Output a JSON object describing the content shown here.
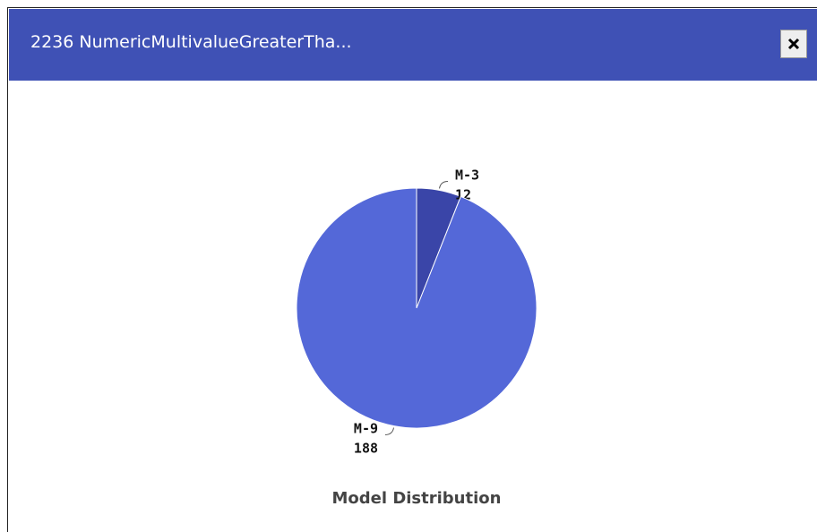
{
  "dialog": {
    "title": "2236 NumericMultivalueGreaterTha..."
  },
  "chart_data": {
    "type": "pie",
    "title": "Model Distribution",
    "categories": [
      "M-3",
      "M-9"
    ],
    "values": [
      12,
      188
    ],
    "colors": [
      "#3a45a8",
      "#5468d8"
    ]
  }
}
